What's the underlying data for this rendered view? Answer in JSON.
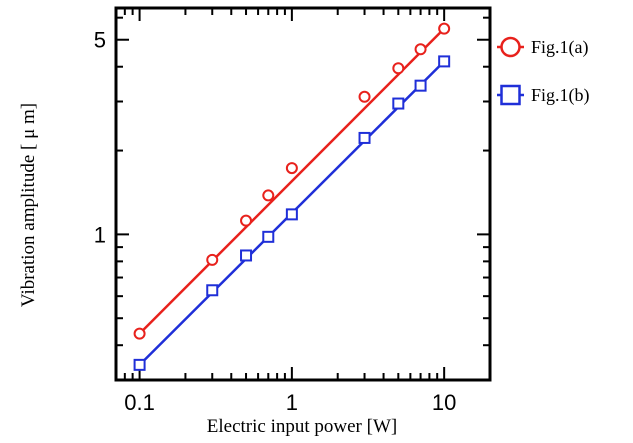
{
  "chart_data": {
    "type": "line",
    "xscale": "log",
    "yscale": "log",
    "xlabel": "Electric input power [W]",
    "ylabel": "Vibration amplitude [ μ m]",
    "xlim": [
      0.07,
      20
    ],
    "ylim": [
      0.3,
      6.5
    ],
    "x_ticks": [
      {
        "value": 0.1,
        "label": "0.1"
      },
      {
        "value": 1,
        "label": "1"
      },
      {
        "value": 10,
        "label": "10"
      }
    ],
    "y_ticks": [
      {
        "value": 1,
        "label": "1"
      },
      {
        "value": 5,
        "label": "5"
      }
    ],
    "legend_position": "right",
    "series": [
      {
        "name": "Fig.1(a)",
        "color": "#e8211c",
        "marker": "circle",
        "x": [
          0.1,
          0.3,
          0.5,
          0.7,
          1.0,
          3.0,
          5.0,
          7.0,
          10.0
        ],
        "y": [
          0.44,
          0.81,
          1.12,
          1.38,
          1.73,
          3.12,
          3.95,
          4.62,
          5.48
        ],
        "fit": {
          "x": [
            0.1,
            10.0
          ],
          "y": [
            0.44,
            5.48
          ]
        }
      },
      {
        "name": "Fig.1(b)",
        "color": "#1f2fd8",
        "marker": "square",
        "x": [
          0.1,
          0.3,
          0.5,
          0.7,
          1.0,
          3.0,
          5.0,
          7.0,
          10.0
        ],
        "y": [
          0.34,
          0.63,
          0.84,
          0.98,
          1.18,
          2.22,
          2.95,
          3.42,
          4.18
        ],
        "fit": {
          "x": [
            0.1,
            10.0
          ],
          "y": [
            0.34,
            4.18
          ]
        }
      }
    ]
  }
}
